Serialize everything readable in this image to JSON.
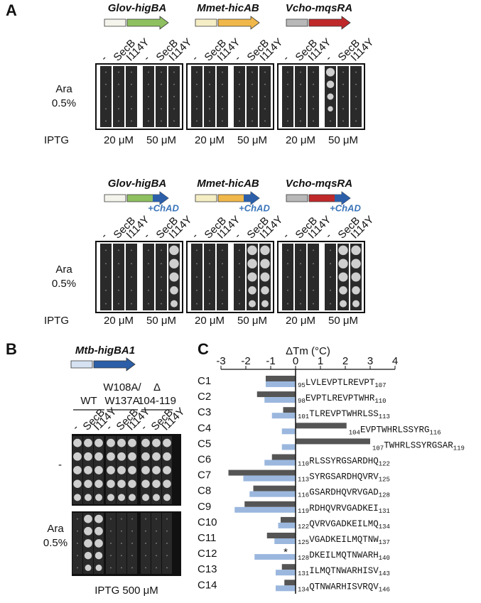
{
  "panel_a": {
    "label": "A",
    "genes": [
      "Glov-higBA",
      "Mmet-hicAB",
      "Vcho-mqsRA"
    ],
    "fusion": "+ChAD",
    "columns": [
      "-",
      "SecB",
      "I114Y"
    ],
    "row_label": [
      "Ara",
      "0.5%"
    ],
    "iptg_label": "IPTG",
    "iptg_levels": [
      "20 μM",
      "50 μM"
    ]
  },
  "panel_b": {
    "label": "B",
    "gene": "Mtb-higBA1",
    "groups": [
      [
        "WT"
      ],
      [
        "W108A/",
        "W137A"
      ],
      [
        "Δ",
        "104-119"
      ]
    ],
    "columns": [
      "-",
      "SecB",
      "I114Y"
    ],
    "row_minus": "-",
    "row_ara": [
      "Ara",
      "0.5%"
    ],
    "iptg": "IPTG 500 μM"
  },
  "panel_c": {
    "label": "C"
  },
  "chart_data": {
    "type": "bar",
    "orientation": "horizontal",
    "title": "ΔTm (°C)",
    "categories": [
      "C1",
      "C2",
      "C3",
      "C4",
      "C5",
      "C6",
      "C7",
      "C8",
      "C9",
      "C10",
      "C11",
      "C12",
      "C13",
      "C14"
    ],
    "series": [
      {
        "color": "#555555",
        "values": [
          -1.2,
          -1.55,
          -0.5,
          2.05,
          3.0,
          -0.95,
          -2.7,
          -1.7,
          -2.05,
          -0.6,
          -1.15,
          null,
          -0.55,
          -0.45
        ]
      },
      {
        "color": "#9bb7de",
        "values": [
          -1.2,
          -1.25,
          -0.95,
          -0.55,
          -0.55,
          -1.25,
          -2.1,
          -1.85,
          -2.45,
          -0.7,
          -0.85,
          -1.65,
          -0.8,
          -0.8
        ]
      }
    ],
    "asterisk": "*",
    "peptides": [
      {
        "start": "95",
        "sequence": "LVLEVPTLREVPT",
        "end": "107"
      },
      {
        "start": "98",
        "sequence": "EVPTLREVPTWHR",
        "end": "110"
      },
      {
        "start": "101",
        "sequence": "TLREVPTWHRLSS",
        "end": "113"
      },
      {
        "start": "104",
        "sequence": "EVPTWHRLSSYRG",
        "end": "116"
      },
      {
        "start": "107",
        "sequence": "TWHRLSSYRGSAR",
        "end": "119"
      },
      {
        "start": "110",
        "sequence": "RLSSYRGSARDHQ",
        "end": "122"
      },
      {
        "start": "113",
        "sequence": "SYRGSARDHQVRV",
        "end": "125"
      },
      {
        "start": "116",
        "sequence": "GSARDHQVRVGAD",
        "end": "128"
      },
      {
        "start": "119",
        "sequence": "RDHQVRVGADKEI",
        "end": "131"
      },
      {
        "start": "122",
        "sequence": "QVRVGADKEILMQ",
        "end": "134"
      },
      {
        "start": "125",
        "sequence": "VGADKEILMQTNW",
        "end": "137"
      },
      {
        "start": "128",
        "sequence": "DKEILMQTNWARH",
        "end": "140"
      },
      {
        "start": "131",
        "sequence": "ILMQTNWARHISV",
        "end": "143"
      },
      {
        "start": "134",
        "sequence": "QTNWARHISVRQV",
        "end": "146"
      }
    ],
    "xlim": [
      -3,
      4
    ],
    "xticks": [
      -3,
      -2,
      -1,
      0,
      1,
      2,
      3,
      4
    ]
  }
}
